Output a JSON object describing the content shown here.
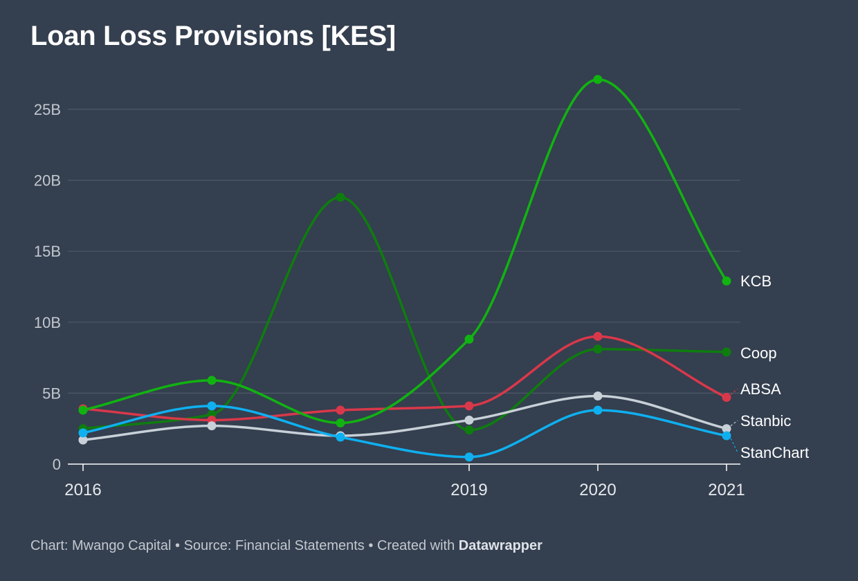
{
  "title": "Loan Loss Provisions [KES]",
  "footer": {
    "chart_credit": "Chart: Mwango Capital",
    "separator": " • ",
    "source": "Source: Financial Statements",
    "created_with": "Created with ",
    "tool": "Datawrapper"
  },
  "chart_data": {
    "type": "line",
    "title": "Loan Loss Provisions [KES]",
    "xlabel": "",
    "ylabel": "",
    "x": [
      2016,
      2017,
      2018,
      2019,
      2020,
      2021
    ],
    "x_tick_values": [
      2016,
      2019,
      2020,
      2021
    ],
    "x_tick_labels": [
      "2016",
      "2019",
      "2020",
      "2021"
    ],
    "ylim": [
      0,
      28
    ],
    "y_ticks": [
      0,
      5,
      10,
      15,
      20,
      25
    ],
    "y_tick_labels": [
      "0",
      "5B",
      "10B",
      "15B",
      "20B",
      "25B"
    ],
    "grid": true,
    "legend": "direct labels at right end of lines",
    "series": [
      {
        "name": "KCB",
        "color": "#11b311",
        "values": [
          3.8,
          5.9,
          2.9,
          8.8,
          27.1,
          12.9
        ]
      },
      {
        "name": "Coop",
        "color": "#0e7d0e",
        "values": [
          2.5,
          3.5,
          18.8,
          2.4,
          8.1,
          7.9
        ]
      },
      {
        "name": "ABSA",
        "color": "#d9384a",
        "values": [
          3.9,
          3.1,
          3.8,
          4.1,
          9.0,
          4.7
        ]
      },
      {
        "name": "Stanbic",
        "color": "#c8d0d8",
        "values": [
          1.7,
          2.7,
          2.0,
          3.1,
          4.8,
          2.5
        ]
      },
      {
        "name": "StanChart",
        "color": "#0fb0f0",
        "values": [
          2.2,
          4.1,
          1.9,
          0.5,
          3.8,
          2.0
        ]
      }
    ]
  }
}
